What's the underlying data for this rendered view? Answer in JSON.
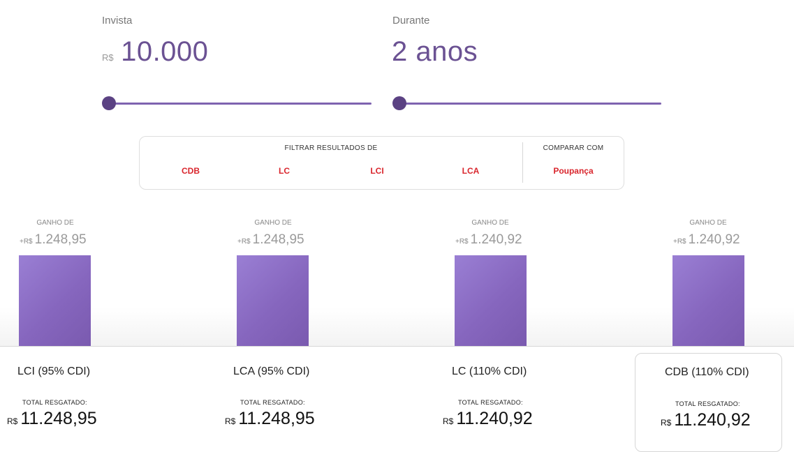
{
  "invest": {
    "label": "Invista",
    "currency": "R$",
    "value": "10.000",
    "slider_value": 0
  },
  "duration": {
    "label": "Durante",
    "value": "2 anos",
    "slider_value": 0
  },
  "filter": {
    "heading": "FILTRAR RESULTADOS DE",
    "options": [
      "CDB",
      "LC",
      "LCI",
      "LCA"
    ],
    "compare_heading": "COMPARAR COM",
    "compare_option": "Poupança",
    "accent_color": "#d9262d"
  },
  "results": [
    {
      "gain_label": "GANHO DE",
      "gain_prefix": "+R$",
      "gain_value": "1.248,95",
      "name": "LCI (95% CDI)",
      "total_label": "TOTAL RESGATADO:",
      "total_currency": "R$",
      "total_value": "11.248,95"
    },
    {
      "gain_label": "GANHO DE",
      "gain_prefix": "+R$",
      "gain_value": "1.248,95",
      "name": "LCA (95% CDI)",
      "total_label": "TOTAL RESGATADO:",
      "total_currency": "R$",
      "total_value": "11.248,95"
    },
    {
      "gain_label": "GANHO DE",
      "gain_prefix": "+R$",
      "gain_value": "1.240,92",
      "name": "LC (110% CDI)",
      "total_label": "TOTAL RESGATADO:",
      "total_currency": "R$",
      "total_value": "11.240,92"
    },
    {
      "gain_label": "GANHO DE",
      "gain_prefix": "+R$",
      "gain_value": "1.240,92",
      "name": "CDB (110% CDI)",
      "total_label": "TOTAL RESGATADO:",
      "total_currency": "R$",
      "total_value": "11.240,92",
      "selected": true
    }
  ],
  "colors": {
    "primary": "#6b5293",
    "bar": "#8666be",
    "slider": "#7e63b0"
  }
}
